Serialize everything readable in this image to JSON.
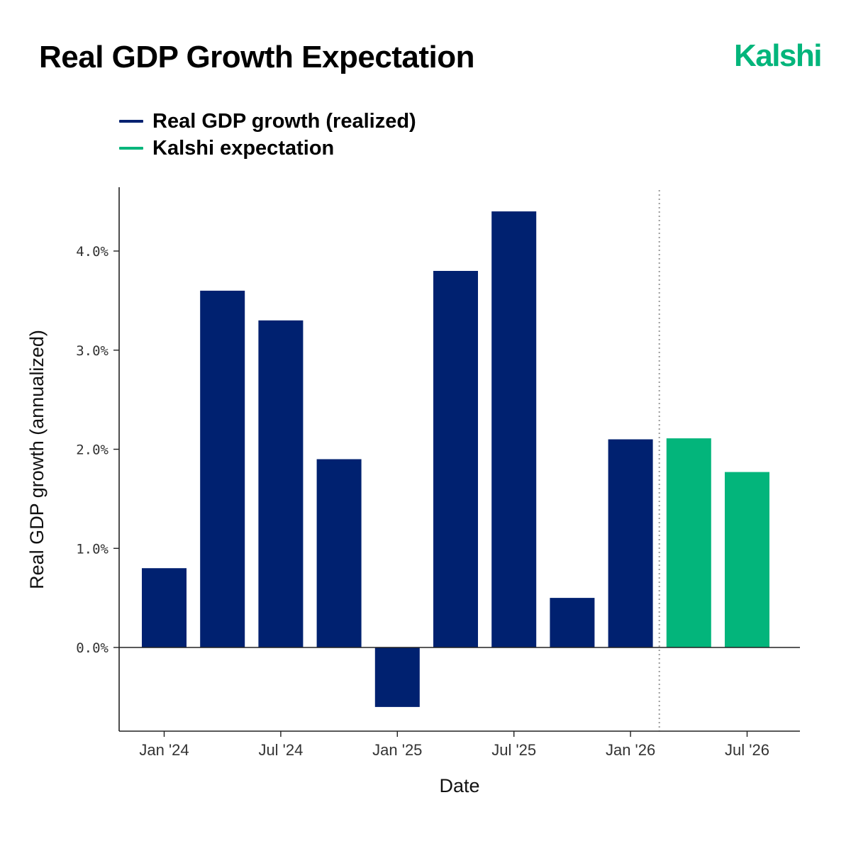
{
  "header": {
    "title": "Real GDP Growth Expectation",
    "brand": "Kalshi",
    "brand_color": "#03b57b"
  },
  "colors": {
    "realized": "#002170",
    "expectation": "#03b57b",
    "axis": "#222222",
    "divider": "#9a9a9a"
  },
  "chart_data": {
    "type": "bar",
    "title": "Real GDP Growth Expectation",
    "xlabel": "Date",
    "ylabel": "Real GDP growth (annualized)",
    "ylim": [
      -0.85,
      4.65
    ],
    "y_ticks": [
      0.0,
      1.0,
      2.0,
      3.0,
      4.0
    ],
    "y_tick_labels": [
      "0.0%",
      "1.0%",
      "2.0%",
      "3.0%",
      "4.0%"
    ],
    "x_ticks": [
      {
        "label": "Jan '24",
        "position": 0
      },
      {
        "label": "Jul '24",
        "position": 2
      },
      {
        "label": "Jan '25",
        "position": 4
      },
      {
        "label": "Jul '25",
        "position": 6
      },
      {
        "label": "Jan '26",
        "position": 8
      },
      {
        "label": "Jul '26",
        "position": 10
      }
    ],
    "grid": false,
    "legend_placement": "top-left",
    "series": [
      {
        "name": "Real GDP growth (realized)",
        "color": "#002170",
        "points": [
          {
            "period": "2024 Q1",
            "value": 0.8
          },
          {
            "period": "2024 Q2",
            "value": 3.6
          },
          {
            "period": "2024 Q3",
            "value": 3.3
          },
          {
            "period": "2024 Q4",
            "value": 1.9
          },
          {
            "period": "2025 Q1",
            "value": -0.6
          },
          {
            "period": "2025 Q2",
            "value": 3.8
          },
          {
            "period": "2025 Q3",
            "value": 4.4
          },
          {
            "period": "2025 Q4",
            "value": 0.5
          },
          {
            "period": "2026 Q1",
            "value": 2.1
          }
        ]
      },
      {
        "name": "Kalshi expectation",
        "color": "#03b57b",
        "points": [
          {
            "period": "2026 Q2",
            "value": 2.11
          },
          {
            "period": "2026 Q3",
            "value": 1.77
          }
        ]
      }
    ],
    "divider_after_period": "2026 Q1"
  }
}
